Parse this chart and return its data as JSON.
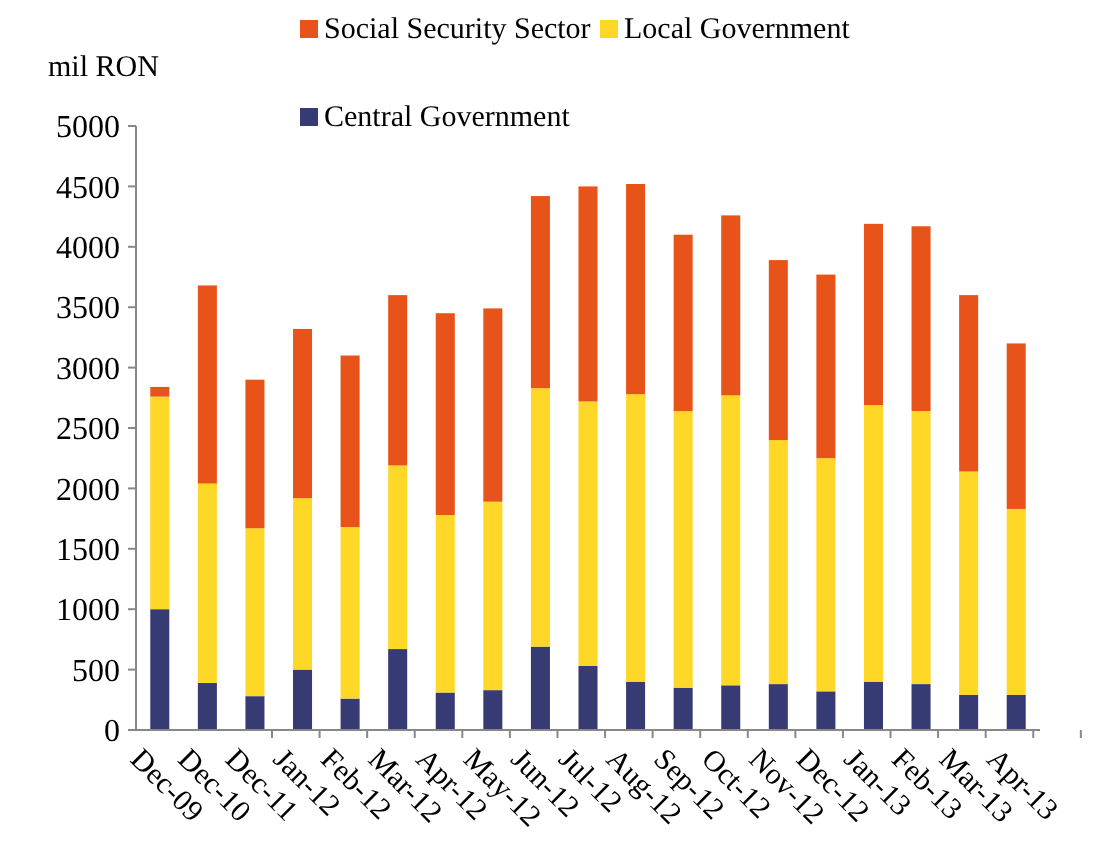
{
  "chart_data": {
    "type": "bar",
    "stacked": true,
    "ylabel": "mil RON",
    "categories": [
      "Dec-09",
      "Dec-10",
      "Dec-11",
      "Jan-12",
      "Feb-12",
      "Mar-12",
      "Apr-12",
      "May-12",
      "Jun-12",
      "Jul-12",
      "Aug-12",
      "Sep-12",
      "Oct-12",
      "Nov-12",
      "Dec-12",
      "Jan-13",
      "Feb-13",
      "Mar-13",
      "Apr-13"
    ],
    "series": [
      {
        "name": "Central Government",
        "color": "#363b74",
        "values": [
          1000,
          390,
          280,
          500,
          260,
          670,
          310,
          330,
          690,
          530,
          400,
          350,
          370,
          380,
          320,
          400,
          380,
          290,
          290
        ]
      },
      {
        "name": "Local Government",
        "color": "#ffd726",
        "values": [
          1760,
          1650,
          1390,
          1420,
          1420,
          1520,
          1470,
          1560,
          2140,
          2190,
          2380,
          2290,
          2400,
          2020,
          1930,
          2290,
          2260,
          1850,
          1540
        ]
      },
      {
        "name": "Social Security Sector",
        "color": "#e8531a",
        "values": [
          80,
          1640,
          1230,
          1400,
          1420,
          1410,
          1670,
          1600,
          1590,
          1780,
          1740,
          1460,
          1490,
          1490,
          1520,
          1500,
          1530,
          1460,
          1370
        ]
      }
    ],
    "ylim": [
      0,
      5000
    ],
    "yticks": [
      0,
      500,
      1000,
      1500,
      2000,
      2500,
      3000,
      3500,
      4000,
      4500,
      5000
    ],
    "grid": false,
    "legend": "top"
  }
}
